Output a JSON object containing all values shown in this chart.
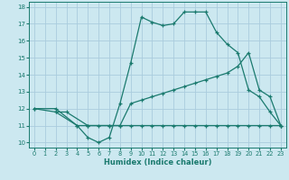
{
  "xlabel": "Humidex (Indice chaleur)",
  "bg_color": "#cce8f0",
  "grid_color": "#aaccdd",
  "line_color": "#1a7a6e",
  "xlim": [
    -0.5,
    23.5
  ],
  "ylim": [
    9.7,
    18.3
  ],
  "xticks": [
    0,
    1,
    2,
    3,
    4,
    5,
    6,
    7,
    8,
    9,
    10,
    11,
    12,
    13,
    14,
    15,
    16,
    17,
    18,
    19,
    20,
    21,
    22,
    23
  ],
  "yticks": [
    10,
    11,
    12,
    13,
    14,
    15,
    16,
    17,
    18
  ],
  "line1_x": [
    0,
    2,
    4,
    5,
    6,
    7,
    8,
    9,
    10,
    11,
    12,
    13,
    14,
    15,
    16,
    17,
    18,
    19,
    20,
    21,
    22,
    23
  ],
  "line1_y": [
    12.0,
    12.0,
    11.0,
    10.3,
    10.0,
    10.3,
    12.3,
    14.7,
    17.4,
    17.1,
    16.9,
    17.0,
    17.7,
    17.7,
    17.7,
    16.5,
    15.8,
    15.3,
    13.1,
    12.7,
    11.8,
    11.0
  ],
  "line2_x": [
    0,
    2,
    3,
    5,
    7,
    8,
    9,
    10,
    11,
    12,
    13,
    14,
    15,
    16,
    17,
    18,
    19,
    20,
    21,
    22,
    23
  ],
  "line2_y": [
    12.0,
    11.8,
    11.8,
    11.0,
    11.0,
    11.0,
    12.3,
    12.5,
    12.7,
    12.9,
    13.1,
    13.3,
    13.5,
    13.7,
    13.9,
    14.1,
    14.5,
    15.3,
    13.1,
    12.7,
    11.0
  ],
  "line3_x": [
    2,
    4,
    5,
    6,
    7,
    8,
    9,
    10,
    11,
    12,
    13,
    14,
    15,
    16,
    17,
    18,
    19,
    20,
    21,
    22,
    23
  ],
  "line3_y": [
    11.8,
    11.0,
    11.0,
    11.0,
    11.0,
    11.0,
    11.0,
    11.0,
    11.0,
    11.0,
    11.0,
    11.0,
    11.0,
    11.0,
    11.0,
    11.0,
    11.0,
    11.0,
    11.0,
    11.0,
    11.0
  ]
}
